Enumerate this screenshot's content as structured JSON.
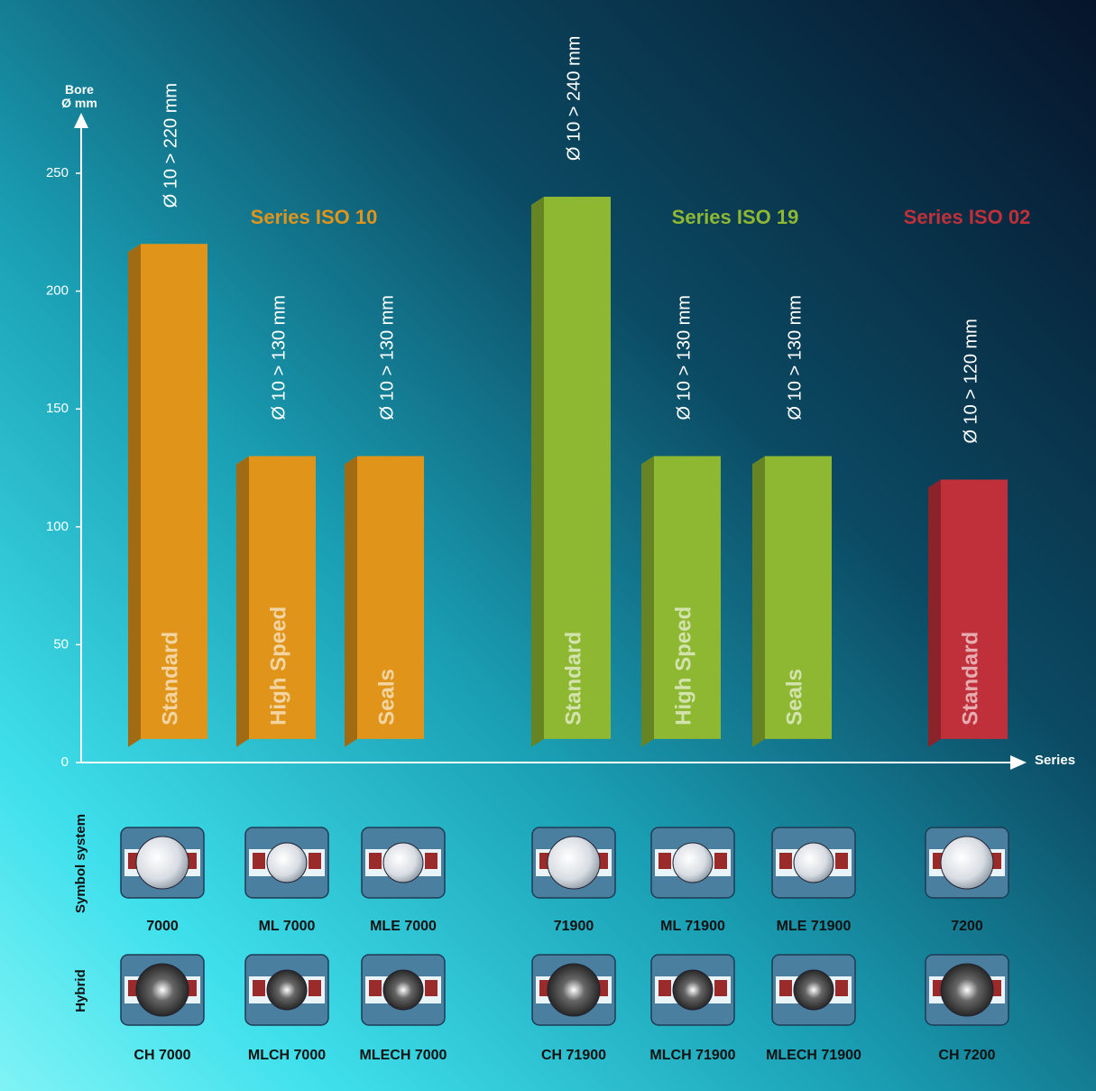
{
  "chart_data": {
    "type": "bar",
    "y_label": "Bore Ø mm",
    "x_label": "Series",
    "ylim": [
      0,
      275
    ],
    "yticks": [
      0,
      50,
      100,
      150,
      200,
      250
    ],
    "series": [
      {
        "name": "Series ISO 10",
        "color": "#e0951a",
        "categories": [
          "Standard",
          "High Speed",
          "Seals"
        ],
        "lows": [
          10,
          10,
          10
        ],
        "values": [
          220,
          130,
          130
        ],
        "value_labels": [
          "Ø 10 > 220 mm",
          "Ø 10 > 130 mm",
          "Ø 10 > 130 mm"
        ]
      },
      {
        "name": "Series ISO 19",
        "color": "#8fb832",
        "categories": [
          "Standard",
          "High Speed",
          "Seals"
        ],
        "lows": [
          10,
          10,
          10
        ],
        "values": [
          240,
          130,
          130
        ],
        "value_labels": [
          "Ø 10 > 240 mm",
          "Ø 10 > 130 mm",
          "Ø 10 > 130 mm"
        ]
      },
      {
        "name": "Series ISO 02",
        "color": "#c0303a",
        "categories": [
          "Standard"
        ],
        "lows": [
          10
        ],
        "values": [
          120
        ],
        "value_labels": [
          "Ø 10 > 120 mm"
        ]
      }
    ]
  },
  "symbols": {
    "rows": [
      "Symbol system",
      "Hybrid"
    ],
    "codes": [
      [
        "7000",
        "ML 7000",
        "MLE 7000",
        "71900",
        "ML 71900",
        "MLE 71900",
        "7200"
      ],
      [
        "CH 7000",
        "MLCH 7000",
        "MLECH 7000",
        "CH 71900",
        "MLCH 71900",
        "MLECH 71900",
        "CH 7200"
      ]
    ]
  }
}
